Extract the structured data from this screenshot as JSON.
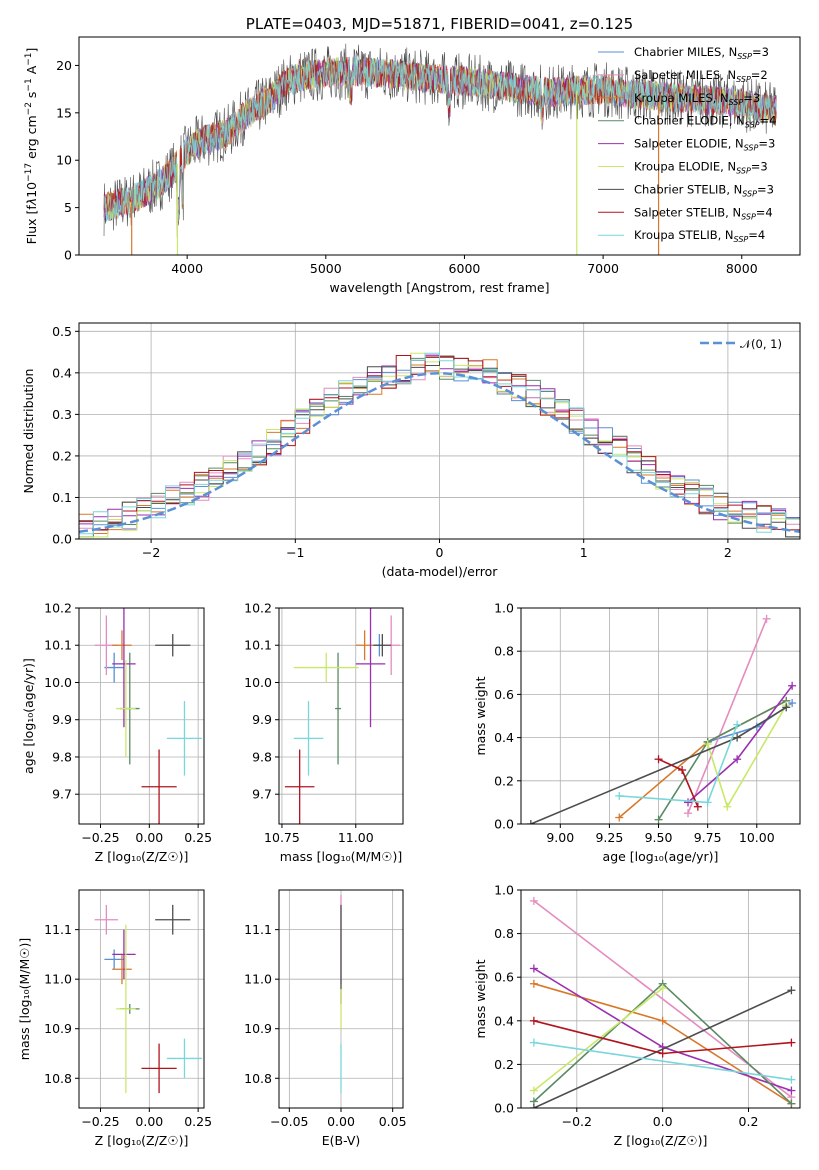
{
  "colors": {
    "Chabrier MILES": "#5b8fd6",
    "Salpeter MILES": "#e48cc0",
    "Kroupa MILES": "#d9782a",
    "Chabrier ELODIE": "#5a8a64",
    "Salpeter ELODIE": "#9a2fb0",
    "Kroupa ELODIE": "#c9e86a",
    "Chabrier STELIB": "#4d4d4d",
    "Salpeter STELIB": "#b0141e",
    "Kroupa STELIB": "#79d6dc"
  },
  "chart_data": [
    {
      "type": "line",
      "title": "PLATE=0403, MJD=51871, FIBERID=0041, z=0.125",
      "xlabel": "wavelength [Angstrom, rest frame]",
      "ylabel": "Flux [f_λ10^{-17} erg cm^{-2} s^{-1} A^{-1}]",
      "xlim": [
        3220,
        8420
      ],
      "ylim": [
        0,
        23
      ],
      "xticks": [
        "4000",
        "5000",
        "6000",
        "7000",
        "8000"
      ],
      "yticks": [
        "0",
        "5",
        "10",
        "15",
        "20"
      ],
      "legend_position": "top-right",
      "legend": [
        {
          "label": "Chabrier MILES, N",
          "sub": "SSP",
          "tail": "=3"
        },
        {
          "label": "Salpeter MILES, N",
          "sub": "SSP",
          "tail": "=2"
        },
        {
          "label": "Kroupa MILES, N",
          "sub": "SSP",
          "tail": "=3"
        },
        {
          "label": "Chabrier ELODIE, N",
          "sub": "SSP",
          "tail": "=4"
        },
        {
          "label": "Salpeter ELODIE, N",
          "sub": "SSP",
          "tail": "=3"
        },
        {
          "label": "Kroupa ELODIE, N",
          "sub": "SSP",
          "tail": "=3"
        },
        {
          "label": "Chabrier STELIB, N",
          "sub": "SSP",
          "tail": "=3"
        },
        {
          "label": "Salpeter STELIB, N",
          "sub": "SSP",
          "tail": "=4"
        },
        {
          "label": "Kroupa STELIB, N",
          "sub": "SSP",
          "tail": "=4"
        }
      ],
      "continuum": {
        "x": [
          3400,
          3600,
          3800,
          3900,
          4000,
          4100,
          4200,
          4300,
          4400,
          4500,
          4600,
          4700,
          4800,
          5000,
          5200,
          5400,
          5600,
          5800,
          6000,
          6200,
          6400,
          6600,
          6800,
          7000,
          7200,
          7400,
          7600,
          7800,
          8000,
          8200
        ],
        "y": [
          5.0,
          5.8,
          7.5,
          9.0,
          11.0,
          12.0,
          12.5,
          13.0,
          14.5,
          15.5,
          16.5,
          18.0,
          18.8,
          19.2,
          19.4,
          19.2,
          18.9,
          18.6,
          18.3,
          18.0,
          17.5,
          17.2,
          17.3,
          17.5,
          17.0,
          16.8,
          16.5,
          16.3,
          16.0,
          15.3
        ]
      }
    },
    {
      "type": "histogram",
      "xlabel": "(data-model)/error",
      "ylabel": "Normed distribution",
      "xlim": [
        -2.5,
        2.5
      ],
      "ylim": [
        0,
        0.52
      ],
      "xticks": [
        "−2",
        "−1",
        "0",
        "1",
        "2"
      ],
      "yticks": [
        "0.0",
        "0.1",
        "0.2",
        "0.3",
        "0.4",
        "0.5"
      ],
      "reference": {
        "label": "𝒩(0, 1)",
        "mean": 0,
        "sigma": 1,
        "color": "#5b8fd6"
      },
      "bin_width": 0.1,
      "bin_start": -2.5,
      "base_profile": [
        0.02,
        0.02,
        0.03,
        0.03,
        0.04,
        0.05,
        0.05,
        0.06,
        0.07,
        0.08,
        0.09,
        0.1,
        0.12,
        0.13,
        0.14,
        0.15,
        0.17,
        0.19,
        0.22,
        0.24,
        0.27,
        0.29,
        0.31,
        0.33,
        0.34,
        0.35,
        0.37,
        0.38,
        0.4,
        0.41,
        0.42,
        0.43,
        0.44,
        0.44,
        0.43,
        0.42,
        0.41,
        0.4,
        0.38,
        0.36,
        0.34,
        0.32,
        0.3,
        0.28,
        0.25,
        0.23,
        0.21,
        0.19,
        0.17,
        0.15,
        0.13,
        0.11,
        0.1,
        0.09,
        0.08,
        0.07,
        0.06,
        0.05,
        0.04,
        0.03,
        0.03,
        0.02,
        0.02,
        0.02,
        0.02,
        0.02,
        0.02,
        0.02,
        0.02,
        0.02,
        0.02,
        0.02,
        0.02,
        0.02,
        0.02,
        0.02,
        0.02,
        0.02,
        0.02,
        0.02,
        0.02,
        0.02,
        0.02,
        0.02,
        0.02,
        0.02,
        0.02,
        0.02,
        0.02,
        0.02,
        0.02,
        0.02,
        0.02,
        0.02,
        0.02,
        0.02,
        0.02,
        0.02,
        0.02,
        0.02
      ]
    },
    {
      "type": "errorbar",
      "xlabel": "Z [log₁₀(Z/Z☉)]",
      "ylabel": "age [log₁₀(age/yr)]",
      "xlim": [
        -0.36,
        0.28
      ],
      "ylim": [
        9.62,
        10.2
      ],
      "xticks": [
        "−0.25",
        "0.00",
        "0.25"
      ],
      "yticks": [
        "9.7",
        "9.8",
        "9.9",
        "10.0",
        "10.1",
        "10.2"
      ],
      "points": [
        {
          "m": "Chabrier MILES",
          "x": -0.18,
          "y": 10.04,
          "xe": 0.05,
          "ye": 0.04
        },
        {
          "m": "Salpeter MILES",
          "x": -0.22,
          "y": 10.1,
          "xe": 0.06,
          "ye": 0.08
        },
        {
          "m": "Kroupa MILES",
          "x": -0.14,
          "y": 10.1,
          "xe": 0.05,
          "ye": 0.04
        },
        {
          "m": "Chabrier ELODIE",
          "x": -0.1,
          "y": 9.93,
          "xe": 0.05,
          "ye": 0.15
        },
        {
          "m": "Salpeter ELODIE",
          "x": -0.13,
          "y": 10.05,
          "xe": 0.06,
          "ye": 0.17
        },
        {
          "m": "Kroupa ELODIE",
          "x": -0.12,
          "y": 9.93,
          "xe": 0.05,
          "ye": 0.13
        },
        {
          "m": "Chabrier STELIB",
          "x": 0.12,
          "y": 10.1,
          "xe": 0.09,
          "ye": 0.03
        },
        {
          "m": "Salpeter STELIB",
          "x": 0.05,
          "y": 9.72,
          "xe": 0.09,
          "ye": 0.1
        },
        {
          "m": "Kroupa STELIB",
          "x": 0.18,
          "y": 9.85,
          "xe": 0.09,
          "ye": 0.1
        }
      ]
    },
    {
      "type": "errorbar",
      "xlabel": "mass [log₁₀(M/M☉)]",
      "xlim": [
        10.74,
        11.16
      ],
      "ylim": [
        9.62,
        10.2
      ],
      "xticks": [
        "10.75",
        "11.00"
      ],
      "yticks": [
        "9.7",
        "9.8",
        "9.9",
        "10.0",
        "10.1",
        "10.2"
      ],
      "points": [
        {
          "m": "Chabrier MILES",
          "x": 11.08,
          "y": 10.1,
          "xe": 0.02,
          "ye": 0.03
        },
        {
          "m": "Salpeter MILES",
          "x": 11.12,
          "y": 10.1,
          "xe": 0.03,
          "ye": 0.08
        },
        {
          "m": "Kroupa MILES",
          "x": 11.03,
          "y": 10.1,
          "xe": 0.03,
          "ye": 0.04
        },
        {
          "m": "Chabrier ELODIE",
          "x": 10.94,
          "y": 9.93,
          "xe": 0.01,
          "ye": 0.15
        },
        {
          "m": "Salpeter ELODIE",
          "x": 11.05,
          "y": 10.05,
          "xe": 0.05,
          "ye": 0.17
        },
        {
          "m": "Kroupa ELODIE",
          "x": 10.9,
          "y": 10.04,
          "xe": 0.11,
          "ye": 0.04
        },
        {
          "m": "Chabrier STELIB",
          "x": 11.09,
          "y": 10.1,
          "xe": 0.03,
          "ye": 0.03
        },
        {
          "m": "Salpeter STELIB",
          "x": 10.81,
          "y": 9.72,
          "xe": 0.05,
          "ye": 0.1
        },
        {
          "m": "Kroupa STELIB",
          "x": 10.84,
          "y": 9.85,
          "xe": 0.05,
          "ye": 0.1
        }
      ]
    },
    {
      "type": "line",
      "xlabel": "age [log₁₀(age/yr)]",
      "ylabel": "mass weight",
      "xlim": [
        8.8,
        10.22
      ],
      "ylim": [
        0,
        1
      ],
      "xticks": [
        "9.00",
        "9.25",
        "9.50",
        "9.75",
        "10.00"
      ],
      "yticks": [
        "0.0",
        "0.2",
        "0.4",
        "0.6",
        "0.8",
        "1.0"
      ],
      "series": [
        {
          "m": "Chabrier MILES",
          "x": [
            9.75,
            10.0,
            10.18
          ],
          "y": [
            0.38,
            0.45,
            0.56
          ]
        },
        {
          "m": "Salpeter MILES",
          "x": [
            9.65,
            10.05
          ],
          "y": [
            0.05,
            0.95
          ]
        },
        {
          "m": "Kroupa MILES",
          "x": [
            9.3,
            9.75,
            10.15
          ],
          "y": [
            0.03,
            0.38,
            0.57
          ]
        },
        {
          "m": "Chabrier ELODIE",
          "x": [
            9.5,
            9.75,
            10.15
          ],
          "y": [
            0.02,
            0.38,
            0.57
          ]
        },
        {
          "m": "Salpeter ELODIE",
          "x": [
            9.65,
            9.9,
            10.18
          ],
          "y": [
            0.1,
            0.3,
            0.64
          ]
        },
        {
          "m": "Kroupa ELODIE",
          "x": [
            9.75,
            9.85,
            10.15
          ],
          "y": [
            0.37,
            0.08,
            0.55
          ]
        },
        {
          "m": "Chabrier STELIB",
          "x": [
            8.85,
            9.9,
            10.15
          ],
          "y": [
            0.0,
            0.4,
            0.54
          ]
        },
        {
          "m": "Salpeter STELIB",
          "x": [
            9.5,
            9.62,
            9.7
          ],
          "y": [
            0.3,
            0.25,
            0.08
          ]
        },
        {
          "m": "Kroupa STELIB",
          "x": [
            9.3,
            9.75,
            9.9
          ],
          "y": [
            0.13,
            0.1,
            0.46
          ]
        }
      ]
    },
    {
      "type": "errorbar",
      "xlabel": "Z [log₁₀(Z/Z☉)]",
      "ylabel": "mass [log₁₀(M/M☉)]",
      "xlim": [
        -0.36,
        0.28
      ],
      "ylim": [
        10.74,
        11.18
      ],
      "xticks": [
        "−0.25",
        "0.00",
        "0.25"
      ],
      "yticks": [
        "10.8",
        "10.9",
        "11.0",
        "11.1"
      ],
      "points": [
        {
          "m": "Chabrier MILES",
          "x": -0.18,
          "y": 11.04,
          "xe": 0.05,
          "ye": 0.02
        },
        {
          "m": "Salpeter MILES",
          "x": -0.22,
          "y": 11.12,
          "xe": 0.06,
          "ye": 0.03
        },
        {
          "m": "Kroupa MILES",
          "x": -0.14,
          "y": 11.02,
          "xe": 0.05,
          "ye": 0.03
        },
        {
          "m": "Chabrier ELODIE",
          "x": -0.1,
          "y": 10.94,
          "xe": 0.05,
          "ye": 0.01
        },
        {
          "m": "Salpeter ELODIE",
          "x": -0.13,
          "y": 11.05,
          "xe": 0.06,
          "ye": 0.05
        },
        {
          "m": "Kroupa ELODIE",
          "x": -0.12,
          "y": 10.94,
          "xe": 0.05,
          "ye": 0.17
        },
        {
          "m": "Chabrier STELIB",
          "x": 0.12,
          "y": 11.12,
          "xe": 0.09,
          "ye": 0.03
        },
        {
          "m": "Salpeter STELIB",
          "x": 0.05,
          "y": 10.82,
          "xe": 0.09,
          "ye": 0.05
        },
        {
          "m": "Kroupa STELIB",
          "x": 0.18,
          "y": 10.84,
          "xe": 0.09,
          "ye": 0.04
        }
      ]
    },
    {
      "type": "errorbar",
      "xlabel": "E(B-V)",
      "xlim": [
        -0.06,
        0.06
      ],
      "ylim": [
        10.74,
        11.18
      ],
      "xticks": [
        "−0.05",
        "0.00",
        "0.05"
      ],
      "yticks": [
        "10.8",
        "10.9",
        "11.0",
        "11.1"
      ],
      "points": [
        {
          "m": "Salpeter MILES",
          "x": 0.0,
          "y": 11.08,
          "xe": 0,
          "ye": 0.09
        },
        {
          "m": "Chabrier STELIB",
          "x": 0.0,
          "y": 11.05,
          "xe": 0,
          "ye": 0.1
        },
        {
          "m": "Kroupa ELODIE",
          "x": 0.0,
          "y": 10.94,
          "xe": 0,
          "ye": 0.04
        },
        {
          "m": "Kroupa STELIB",
          "x": 0.0,
          "y": 10.82,
          "xe": 0,
          "ye": 0.05
        }
      ]
    },
    {
      "type": "line",
      "xlabel": "Z [log₁₀(Z/Z☉)]",
      "ylabel": "mass weight",
      "xlim": [
        -0.33,
        0.32
      ],
      "ylim": [
        0,
        1
      ],
      "xticks": [
        "−0.2",
        "0.0",
        "0.2"
      ],
      "yticks": [
        "0.0",
        "0.2",
        "0.4",
        "0.6",
        "0.8",
        "1.0"
      ],
      "series": [
        {
          "m": "Salpeter MILES",
          "x": [
            -0.3,
            0.3
          ],
          "y": [
            0.95,
            0.05
          ]
        },
        {
          "m": "Kroupa MILES",
          "x": [
            -0.3,
            0.0,
            0.3
          ],
          "y": [
            0.57,
            0.4,
            0.02
          ]
        },
        {
          "m": "Salpeter ELODIE",
          "x": [
            -0.3,
            0.0,
            0.3
          ],
          "y": [
            0.64,
            0.28,
            0.08
          ]
        },
        {
          "m": "Chabrier ELODIE",
          "x": [
            -0.3,
            0.0,
            0.3
          ],
          "y": [
            0.03,
            0.57,
            0.02
          ]
        },
        {
          "m": "Kroupa ELODIE",
          "x": [
            -0.3,
            0.0
          ],
          "y": [
            0.08,
            0.55
          ]
        },
        {
          "m": "Chabrier STELIB",
          "x": [
            -0.3,
            0.3
          ],
          "y": [
            0.0,
            0.54
          ]
        },
        {
          "m": "Salpeter STELIB",
          "x": [
            -0.3,
            0.0,
            0.3
          ],
          "y": [
            0.4,
            0.25,
            0.3
          ]
        },
        {
          "m": "Kroupa STELIB",
          "x": [
            -0.3,
            0.3
          ],
          "y": [
            0.3,
            0.13
          ]
        }
      ]
    }
  ]
}
